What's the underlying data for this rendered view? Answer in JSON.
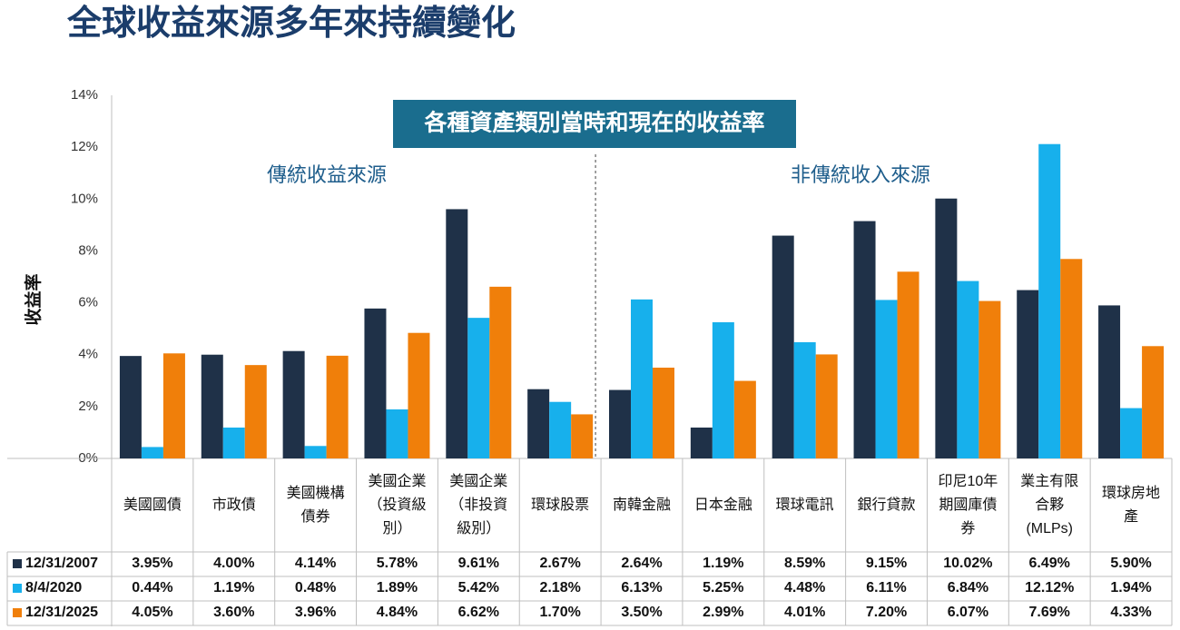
{
  "chart_data": {
    "type": "bar",
    "title": "全球收益來源多年來持續變化",
    "box_title": "各種資產類別當時和現在的收益率",
    "group_labels": [
      "傳統收益來源",
      "非傳統收入來源"
    ],
    "y_label": "收益率",
    "categories": [
      "美國國債",
      "市政債",
      "美國機構債券",
      "美國企業（投資級別）",
      "美國企業（非投資級別）",
      "環球股票",
      "南韓金融",
      "日本金融",
      "環球電訊",
      "銀行貸款",
      "印尼10年期國庫債券",
      "業主有限合夥(MLPs)",
      "環球房地產"
    ],
    "series": [
      {
        "name": "12/31/2007",
        "color": "#1f3148",
        "values": [
          3.95,
          4.0,
          4.14,
          5.78,
          9.61,
          2.67,
          2.64,
          1.19,
          8.59,
          9.15,
          10.02,
          6.49,
          5.9
        ],
        "value_labels": [
          "3.95%",
          "4.00%",
          "4.14%",
          "5.78%",
          "9.61%",
          "2.67%",
          "2.64%",
          "1.19%",
          "8.59%",
          "9.15%",
          "10.02%",
          "6.49%",
          "5.90%"
        ]
      },
      {
        "name": "8/4/2020",
        "color": "#17b0ec",
        "values": [
          0.44,
          1.19,
          0.48,
          1.89,
          5.42,
          2.18,
          6.13,
          5.25,
          4.48,
          6.11,
          6.84,
          12.12,
          1.94
        ],
        "value_labels": [
          "0.44%",
          "1.19%",
          "0.48%",
          "1.89%",
          "5.42%",
          "2.18%",
          "6.13%",
          "5.25%",
          "4.48%",
          "6.11%",
          "6.84%",
          "12.12%",
          "1.94%"
        ]
      },
      {
        "name": "12/31/2025",
        "color": "#f07f0a",
        "values": [
          4.05,
          3.6,
          3.96,
          4.84,
          6.62,
          1.7,
          3.5,
          2.99,
          4.01,
          7.2,
          6.07,
          7.69,
          4.33
        ],
        "value_labels": [
          "4.05%",
          "3.60%",
          "3.96%",
          "4.84%",
          "6.62%",
          "1.70%",
          "3.50%",
          "2.99%",
          "4.01%",
          "7.20%",
          "6.07%",
          "7.69%",
          "4.33%"
        ]
      }
    ],
    "ylim": [
      0,
      14
    ],
    "yticks": [
      {
        "value": 0,
        "label": "0%"
      },
      {
        "value": 2,
        "label": "2%"
      },
      {
        "value": 4,
        "label": "4%"
      },
      {
        "value": 6,
        "label": "6%"
      },
      {
        "value": 8,
        "label": "8%"
      },
      {
        "value": 10,
        "label": "10%"
      },
      {
        "value": 12,
        "label": "12%"
      },
      {
        "value": 14,
        "label": "14%"
      }
    ],
    "grid": false
  }
}
